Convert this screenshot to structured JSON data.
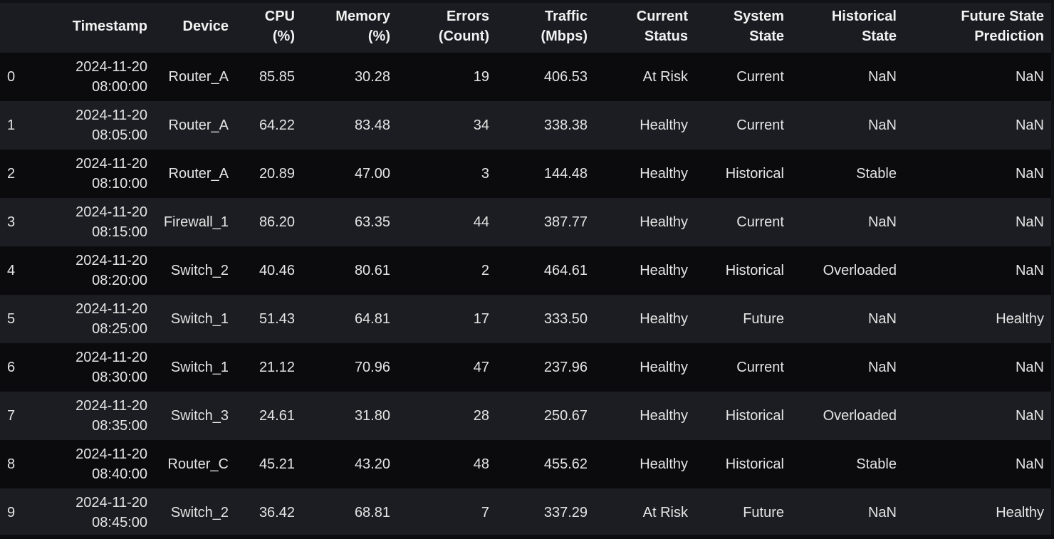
{
  "dataframe": {
    "columns": [
      {
        "lines": [
          ""
        ]
      },
      {
        "lines": [
          "Timestamp"
        ]
      },
      {
        "lines": [
          "Device"
        ]
      },
      {
        "lines": [
          "CPU",
          "(%)"
        ]
      },
      {
        "lines": [
          "Memory",
          "(%)"
        ]
      },
      {
        "lines": [
          "Errors",
          "(Count)"
        ]
      },
      {
        "lines": [
          "Traffic",
          "(Mbps)"
        ]
      },
      {
        "lines": [
          "Current",
          "Status"
        ]
      },
      {
        "lines": [
          "System",
          "State"
        ]
      },
      {
        "lines": [
          "Historical",
          "State"
        ]
      },
      {
        "lines": [
          "Future State",
          "Prediction"
        ]
      }
    ],
    "rows": [
      {
        "index": "0",
        "date": "2024-11-20",
        "time": "08:00:00",
        "device": "Router_A",
        "cpu": "85.85",
        "memory": "30.28",
        "errors": "19",
        "traffic": "406.53",
        "current_status": "At Risk",
        "system_state": "Current",
        "historical_state": "NaN",
        "future_state": "NaN"
      },
      {
        "index": "1",
        "date": "2024-11-20",
        "time": "08:05:00",
        "device": "Router_A",
        "cpu": "64.22",
        "memory": "83.48",
        "errors": "34",
        "traffic": "338.38",
        "current_status": "Healthy",
        "system_state": "Current",
        "historical_state": "NaN",
        "future_state": "NaN"
      },
      {
        "index": "2",
        "date": "2024-11-20",
        "time": "08:10:00",
        "device": "Router_A",
        "cpu": "20.89",
        "memory": "47.00",
        "errors": "3",
        "traffic": "144.48",
        "current_status": "Healthy",
        "system_state": "Historical",
        "historical_state": "Stable",
        "future_state": "NaN"
      },
      {
        "index": "3",
        "date": "2024-11-20",
        "time": "08:15:00",
        "device": "Firewall_1",
        "cpu": "86.20",
        "memory": "63.35",
        "errors": "44",
        "traffic": "387.77",
        "current_status": "Healthy",
        "system_state": "Current",
        "historical_state": "NaN",
        "future_state": "NaN"
      },
      {
        "index": "4",
        "date": "2024-11-20",
        "time": "08:20:00",
        "device": "Switch_2",
        "cpu": "40.46",
        "memory": "80.61",
        "errors": "2",
        "traffic": "464.61",
        "current_status": "Healthy",
        "system_state": "Historical",
        "historical_state": "Overloaded",
        "future_state": "NaN"
      },
      {
        "index": "5",
        "date": "2024-11-20",
        "time": "08:25:00",
        "device": "Switch_1",
        "cpu": "51.43",
        "memory": "64.81",
        "errors": "17",
        "traffic": "333.50",
        "current_status": "Healthy",
        "system_state": "Future",
        "historical_state": "NaN",
        "future_state": "Healthy"
      },
      {
        "index": "6",
        "date": "2024-11-20",
        "time": "08:30:00",
        "device": "Switch_1",
        "cpu": "21.12",
        "memory": "70.96",
        "errors": "47",
        "traffic": "237.96",
        "current_status": "Healthy",
        "system_state": "Current",
        "historical_state": "NaN",
        "future_state": "NaN"
      },
      {
        "index": "7",
        "date": "2024-11-20",
        "time": "08:35:00",
        "device": "Switch_3",
        "cpu": "24.61",
        "memory": "31.80",
        "errors": "28",
        "traffic": "250.67",
        "current_status": "Healthy",
        "system_state": "Historical",
        "historical_state": "Overloaded",
        "future_state": "NaN"
      },
      {
        "index": "8",
        "date": "2024-11-20",
        "time": "08:40:00",
        "device": "Router_C",
        "cpu": "45.21",
        "memory": "43.20",
        "errors": "48",
        "traffic": "455.62",
        "current_status": "Healthy",
        "system_state": "Historical",
        "historical_state": "Stable",
        "future_state": "NaN"
      },
      {
        "index": "9",
        "date": "2024-11-20",
        "time": "08:45:00",
        "device": "Switch_2",
        "cpu": "36.42",
        "memory": "68.81",
        "errors": "7",
        "traffic": "337.29",
        "current_status": "At Risk",
        "system_state": "Future",
        "historical_state": "NaN",
        "future_state": "Healthy"
      }
    ]
  },
  "theme": {
    "header_bg": "#1b1c21",
    "row_dark": "#0b0b0e",
    "row_light": "#1c1d22",
    "text": "#e4e4e4"
  }
}
